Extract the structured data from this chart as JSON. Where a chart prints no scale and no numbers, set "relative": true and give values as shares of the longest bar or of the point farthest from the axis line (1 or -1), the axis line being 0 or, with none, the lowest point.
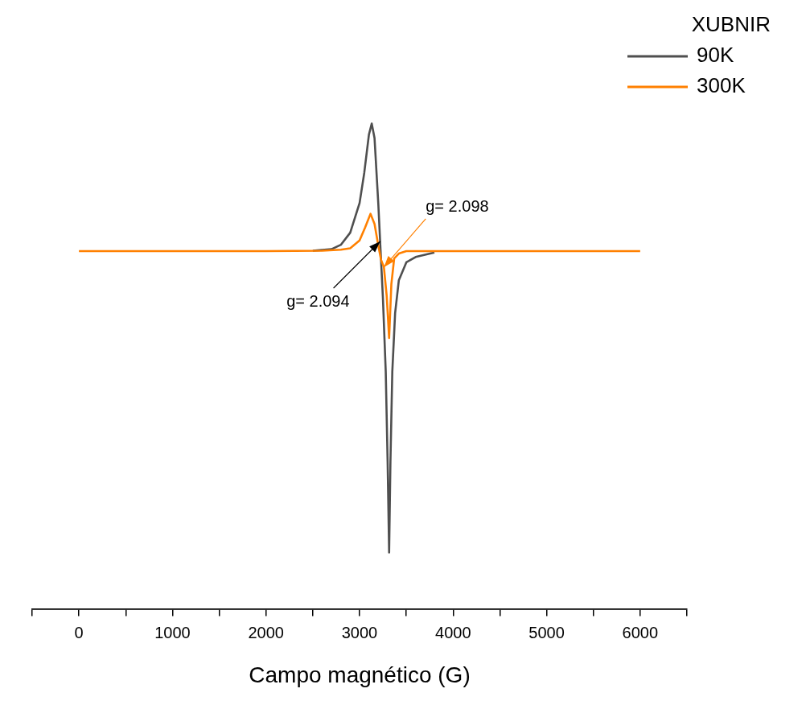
{
  "chart_data": {
    "type": "line",
    "relative": true,
    "xlabel": "Campo magnético (G)",
    "legend_title": "XUBNIR",
    "legend": "top right",
    "xlim": [
      -500,
      6500
    ],
    "xticks": [
      {
        "value": -500,
        "label": null
      },
      0,
      {
        "value": 500,
        "label": null
      },
      1000,
      {
        "value": 1500,
        "label": null
      },
      2000,
      {
        "value": 2500,
        "label": null
      },
      3000,
      {
        "value": 3500,
        "label": null
      },
      4000,
      {
        "value": 4500,
        "label": null
      },
      5000,
      {
        "value": 5500,
        "label": null
      },
      6000,
      {
        "value": 6500,
        "label": null
      }
    ],
    "series": [
      {
        "name": "90K",
        "color": "#4f4f4f",
        "x": [
          2500,
          2700,
          2800,
          2900,
          3000,
          3050,
          3100,
          3130,
          3160,
          3200,
          3225,
          3250,
          3280,
          3300,
          3316,
          3330,
          3350,
          3380,
          3420,
          3500,
          3600,
          3800
        ],
        "values": [
          0.738,
          0.741,
          0.75,
          0.775,
          0.836,
          0.898,
          0.977,
          1,
          0.97,
          0.836,
          0.737,
          0.639,
          0.488,
          0.302,
          0.116,
          0.302,
          0.488,
          0.609,
          0.677,
          0.714,
          0.725,
          0.734
        ]
      },
      {
        "name": "300K",
        "color": "#ff8000",
        "x": [
          0,
          1000,
          2000,
          2600,
          2800,
          2900,
          3000,
          3060,
          3117,
          3160,
          3200,
          3230,
          3260,
          3290,
          3316,
          3340,
          3370,
          3420,
          3500,
          4000,
          5000,
          6000
        ],
        "values": [
          0.737,
          0.737,
          0.737,
          0.738,
          0.74,
          0.743,
          0.759,
          0.786,
          0.814,
          0.793,
          0.749,
          0.719,
          0.704,
          0.645,
          0.558,
          0.669,
          0.722,
          0.732,
          0.737,
          0.737,
          0.737,
          0.737
        ]
      }
    ],
    "annotations": [
      {
        "text": "g= 2.098",
        "x": 3260,
        "y": 0.704
      },
      {
        "text": "g= 2.094",
        "x": 3220,
        "y": 0.757
      }
    ]
  }
}
